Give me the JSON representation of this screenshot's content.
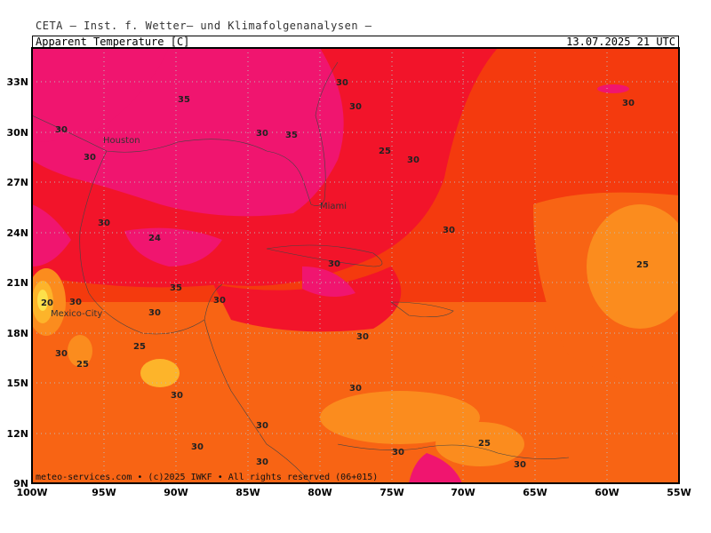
{
  "header": {
    "model_line": "CETA – Inst. f. Wetter– und Klimafolgenanalysen –",
    "variable": "Apparent Temperature [C]",
    "valid_time": "13.07.2025 21 UTC"
  },
  "footer": {
    "credit": "meteo-services.com • (c)2025 IWKF • All rights reserved (06+015)"
  },
  "map": {
    "lat_labels": [
      "33N",
      "30N",
      "27N",
      "24N",
      "21N",
      "18N",
      "15N",
      "12N",
      "9N"
    ],
    "lon_labels": [
      "100W",
      "95W",
      "90W",
      "85W",
      "80W",
      "75W",
      "70W",
      "65W",
      "60W",
      "55W"
    ],
    "cities": [
      {
        "name": "Houston"
      },
      {
        "name": "Miami"
      },
      {
        "name": "Mexico-City"
      }
    ],
    "contour_labels": [
      {
        "value": "35"
      },
      {
        "value": "30"
      },
      {
        "value": "30"
      },
      {
        "value": "35"
      },
      {
        "value": "30"
      },
      {
        "value": "30"
      },
      {
        "value": "25"
      },
      {
        "value": "30"
      },
      {
        "value": "30"
      },
      {
        "value": "30"
      },
      {
        "value": "30"
      },
      {
        "value": "24"
      },
      {
        "value": "30"
      },
      {
        "value": "25"
      },
      {
        "value": "35"
      },
      {
        "value": "30"
      },
      {
        "value": "20"
      },
      {
        "value": "30"
      },
      {
        "value": "30"
      },
      {
        "value": "30"
      },
      {
        "value": "30"
      },
      {
        "value": "25"
      },
      {
        "value": "30"
      },
      {
        "value": "25"
      },
      {
        "value": "30"
      },
      {
        "value": "30"
      },
      {
        "value": "30"
      },
      {
        "value": "30"
      },
      {
        "value": "25"
      },
      {
        "value": "30"
      },
      {
        "value": "30"
      },
      {
        "value": "30"
      }
    ],
    "colors": {
      "hot_magenta": "#f0156f",
      "red": "#f2142a",
      "red_orange": "#f43a0e",
      "orange": "#f86414",
      "light_orange": "#fb8c1e",
      "yellow_orange": "#fdb42a",
      "yellow": "#fde04a"
    }
  }
}
